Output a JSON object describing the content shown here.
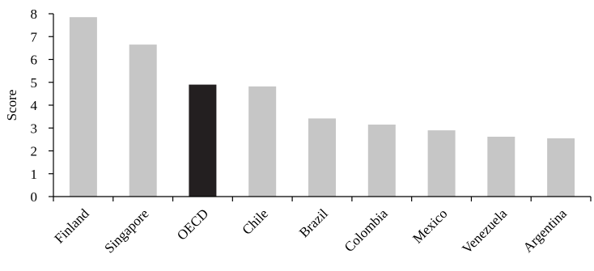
{
  "chart_data": {
    "type": "bar",
    "title": "",
    "xlabel": "",
    "ylabel": "Score",
    "ylim": [
      0,
      8
    ],
    "yticks": [
      0,
      1,
      2,
      3,
      4,
      5,
      6,
      7,
      8
    ],
    "grid": false,
    "categories": [
      "Finland",
      "Singapore",
      "OECD",
      "Chile",
      "Brazil",
      "Colombia",
      "Mexico",
      "Venezuela",
      "Argentina"
    ],
    "values": [
      7.85,
      6.65,
      4.9,
      4.82,
      3.42,
      3.15,
      2.9,
      2.62,
      2.55
    ],
    "colors": [
      "#c6c6c6",
      "#c6c6c6",
      "#231f20",
      "#c6c6c6",
      "#c6c6c6",
      "#c6c6c6",
      "#c6c6c6",
      "#c6c6c6",
      "#c6c6c6"
    ]
  },
  "colors": {
    "default_bar": "#c6c6c6",
    "highlight_bar": "#231f20",
    "axis": "#000000"
  }
}
